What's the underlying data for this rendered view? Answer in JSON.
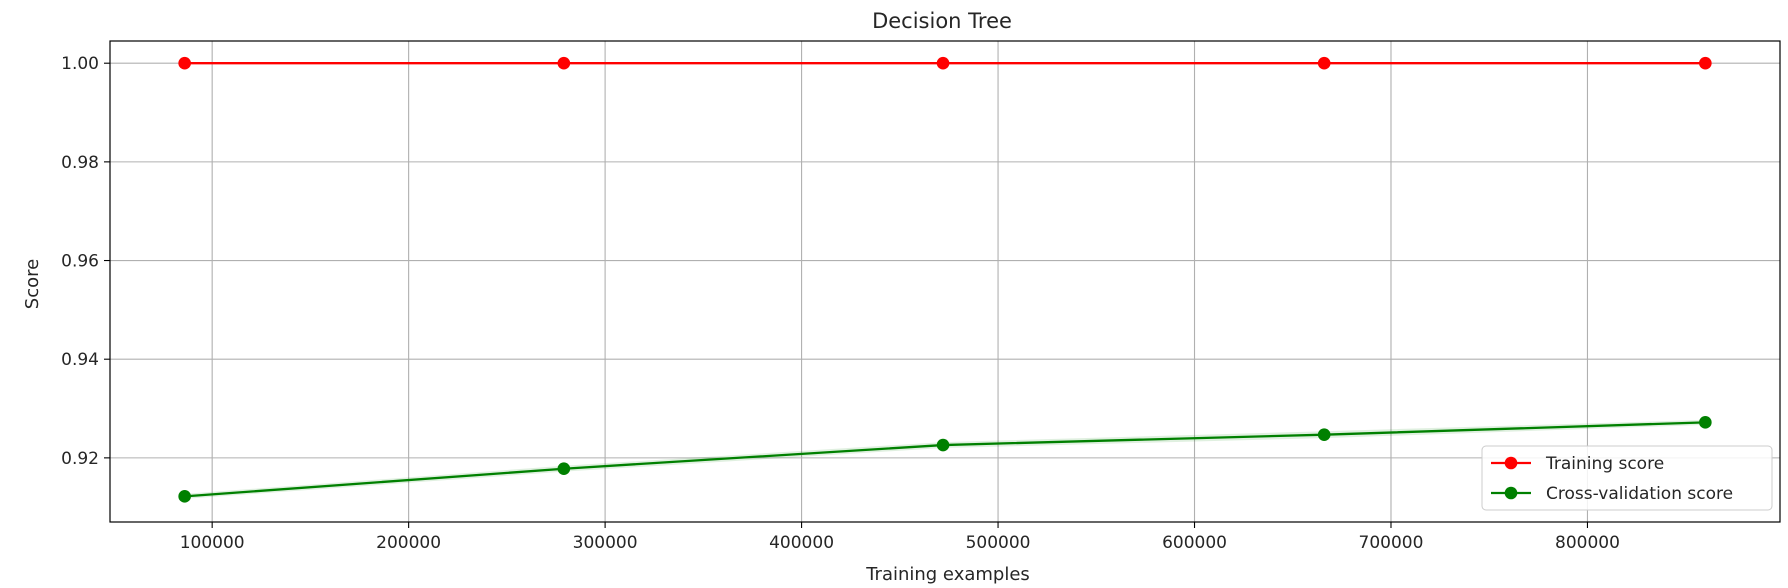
{
  "chart_data": {
    "type": "line",
    "title": "Decision Tree",
    "xlabel": "Training examples",
    "ylabel": "Score",
    "xlim": [
      48000,
      898000
    ],
    "ylim": [
      0.907,
      1.0045
    ],
    "xticks": [
      100000,
      200000,
      300000,
      400000,
      500000,
      600000,
      700000,
      800000
    ],
    "xtick_labels": [
      "100000",
      "200000",
      "300000",
      "400000",
      "500000",
      "600000",
      "700000",
      "800000"
    ],
    "yticks": [
      0.92,
      0.94,
      0.96,
      0.98,
      1.0
    ],
    "ytick_labels": [
      "0.92",
      "0.94",
      "0.96",
      "0.98",
      "1.00"
    ],
    "grid": true,
    "legend_position": "lower-right",
    "x": [
      86000,
      279000,
      472000,
      666000,
      860000
    ],
    "series": [
      {
        "name": "Training score",
        "color": "#ff0000",
        "band_color": "#ff0000",
        "values": [
          1.0,
          1.0,
          1.0,
          1.0,
          1.0
        ],
        "band_low": [
          1.0,
          1.0,
          1.0,
          1.0,
          1.0
        ],
        "band_high": [
          1.0,
          1.0,
          1.0,
          1.0,
          1.0
        ]
      },
      {
        "name": "Cross-validation score",
        "color": "#008000",
        "band_color": "#008000",
        "values": [
          0.9122,
          0.9178,
          0.9226,
          0.9247,
          0.9272
        ],
        "band_low": [
          0.9117,
          0.9172,
          0.922,
          0.924,
          0.9267
        ],
        "band_high": [
          0.9127,
          0.9184,
          0.9232,
          0.9254,
          0.9277
        ]
      }
    ]
  }
}
